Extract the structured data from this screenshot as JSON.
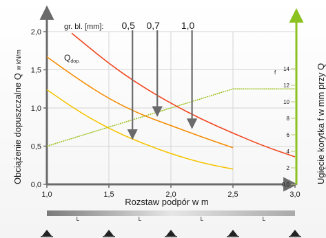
{
  "chart_data": {
    "type": "line",
    "xlabel": "Rozstaw podpór w m",
    "ylabel": "Obciążenie dopuszczalne Q",
    "ylabel_sub": "w kN/m",
    "y2label": "Ugięcie korytka f w mm przy Q",
    "legend_title": "gr. bl. [mm]:",
    "q_label": "Q",
    "q_sub": "dop.",
    "f_label": "f",
    "xlim": [
      1.0,
      3.0
    ],
    "ylim": [
      0.0,
      2.0
    ],
    "x_ticks": [
      "1,0",
      "1,5",
      "2,0",
      "2,5",
      "3,0"
    ],
    "y_ticks": [
      "0,0",
      "0,5",
      "1,0",
      "1,5",
      "2,0"
    ],
    "y2_ticks": [
      "0,0",
      "2",
      "4",
      "6",
      "8",
      "10",
      "12",
      "14"
    ],
    "series": [
      {
        "name": "0,5",
        "color": "#f5c400",
        "x": [
          1.0,
          1.25,
          1.5,
          1.75,
          2.0,
          2.25,
          2.5
        ],
        "y": [
          1.24,
          0.96,
          0.73,
          0.55,
          0.4,
          0.28,
          0.2
        ]
      },
      {
        "name": "0,7",
        "color": "#f58a00",
        "x": [
          1.0,
          1.25,
          1.5,
          1.75,
          2.0,
          2.25,
          2.5
        ],
        "y": [
          1.67,
          1.38,
          1.12,
          0.92,
          0.77,
          0.62,
          0.48
        ]
      },
      {
        "name": "1,0",
        "color": "#f0451e",
        "x": [
          1.2,
          1.5,
          1.75,
          2.0,
          2.25,
          2.5,
          2.75,
          3.0
        ],
        "y": [
          1.98,
          1.58,
          1.3,
          1.06,
          0.85,
          0.67,
          0.5,
          0.36
        ]
      }
    ],
    "deflection": {
      "color": "#9bbf1a",
      "x": [
        1.0,
        1.5,
        2.0,
        2.5,
        3.0
      ],
      "y": [
        0.5,
        0.75,
        1.0,
        1.25,
        1.25
      ]
    },
    "arrows": [
      {
        "label": "0,5",
        "x": 1.69,
        "y_end": 0.58
      },
      {
        "label": "0,7",
        "x": 1.89,
        "y_end": 0.88
      },
      {
        "label": "1,0",
        "x": 2.17,
        "y_end": 0.72
      }
    ],
    "supports": [
      1.0,
      1.5,
      2.0,
      2.5,
      3.0
    ],
    "spans": [
      "L",
      "L",
      "L",
      "L"
    ]
  }
}
